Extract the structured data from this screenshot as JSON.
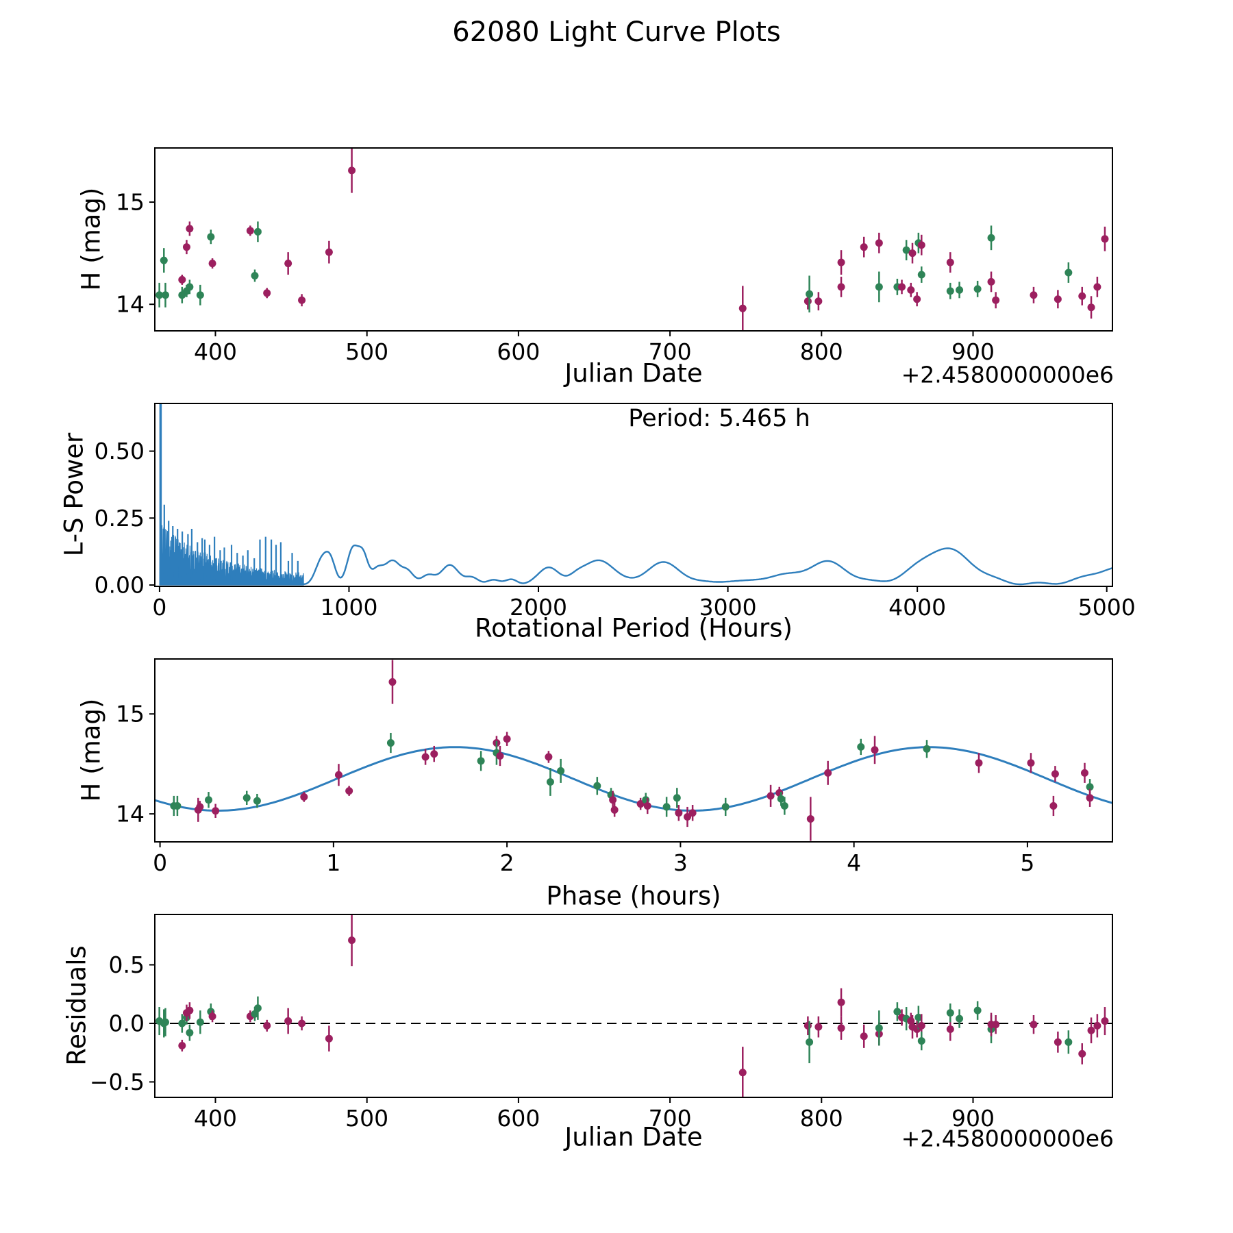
{
  "title": "62080 Light Curve Plots",
  "colors": {
    "green": "#2e8457",
    "purple": "#9c1f5f",
    "blue": "#2e7ebc",
    "axis": "#000000",
    "background": "#ffffff"
  },
  "chart_data": [
    {
      "id": "p1",
      "type": "scatter",
      "name": "raw-light-curve",
      "xlabel": "Julian Date",
      "ylabel": "H (mag)",
      "x_offset_label": "+2.4580000000e6",
      "xlim": [
        360,
        992
      ],
      "ylim": [
        13.74,
        15.53
      ],
      "y_inverted": true,
      "xticks": [
        400,
        500,
        600,
        700,
        800,
        900
      ],
      "yticks": [
        14,
        15
      ],
      "xtick_decimals": 0,
      "ytick_decimals": 0,
      "legend": "off",
      "grid": "off",
      "point_columns": [
        "jd_minus_2458000",
        "H_mag",
        "err_mag",
        "residual_mag",
        "series"
      ],
      "series_names": {
        "g": "observations-set-1",
        "p": "observations-set-2"
      },
      "points": [
        [
          363,
          14.09,
          0.12,
          0.02,
          "g"
        ],
        [
          366,
          14.43,
          0.12,
          0.0,
          "g"
        ],
        [
          367,
          14.09,
          0.12,
          0.01,
          "g"
        ],
        [
          378,
          14.24,
          0.05,
          -0.19,
          "p"
        ],
        [
          378,
          14.09,
          0.08,
          0.0,
          "g"
        ],
        [
          381,
          14.13,
          0.06,
          0.05,
          "g"
        ],
        [
          381,
          14.56,
          0.07,
          0.09,
          "p"
        ],
        [
          383,
          14.74,
          0.07,
          0.11,
          "p"
        ],
        [
          383,
          14.17,
          0.07,
          -0.08,
          "g"
        ],
        [
          390,
          14.09,
          0.1,
          0.01,
          "g"
        ],
        [
          397,
          14.66,
          0.07,
          0.1,
          "g"
        ],
        [
          398,
          14.4,
          0.05,
          0.06,
          "p"
        ],
        [
          423,
          14.72,
          0.05,
          0.06,
          "p"
        ],
        [
          426,
          14.28,
          0.06,
          0.08,
          "g"
        ],
        [
          428,
          14.71,
          0.1,
          0.13,
          "g"
        ],
        [
          434,
          14.11,
          0.05,
          -0.02,
          "p"
        ],
        [
          448,
          14.4,
          0.11,
          0.02,
          "p"
        ],
        [
          457,
          14.04,
          0.06,
          0.0,
          "p"
        ],
        [
          475,
          14.51,
          0.11,
          -0.13,
          "p"
        ],
        [
          490,
          15.31,
          0.22,
          0.71,
          "p"
        ],
        [
          748,
          13.96,
          0.22,
          -0.42,
          "p"
        ],
        [
          791,
          14.03,
          0.08,
          -0.02,
          "p"
        ],
        [
          792,
          14.1,
          0.18,
          -0.16,
          "g"
        ],
        [
          798,
          14.03,
          0.09,
          -0.03,
          "p"
        ],
        [
          813,
          14.17,
          0.1,
          -0.04,
          "p"
        ],
        [
          813,
          14.41,
          0.12,
          0.18,
          "p"
        ],
        [
          828,
          14.56,
          0.1,
          -0.11,
          "p"
        ],
        [
          838,
          14.6,
          0.1,
          -0.09,
          "p"
        ],
        [
          838,
          14.17,
          0.15,
          -0.04,
          "g"
        ],
        [
          850,
          14.17,
          0.08,
          0.1,
          "g"
        ],
        [
          853,
          14.17,
          0.07,
          0.05,
          "p"
        ],
        [
          856,
          14.53,
          0.1,
          0.04,
          "g"
        ],
        [
          859,
          14.14,
          0.07,
          0.02,
          "p"
        ],
        [
          860,
          14.5,
          0.1,
          -0.03,
          "p"
        ],
        [
          863,
          14.05,
          0.07,
          -0.05,
          "p"
        ],
        [
          864,
          14.6,
          0.1,
          0.05,
          "g"
        ],
        [
          866,
          14.58,
          0.1,
          -0.02,
          "p"
        ],
        [
          866,
          14.29,
          0.08,
          -0.15,
          "g"
        ],
        [
          885,
          14.41,
          0.1,
          -0.05,
          "p"
        ],
        [
          885,
          14.13,
          0.08,
          0.09,
          "g"
        ],
        [
          891,
          14.14,
          0.08,
          0.04,
          "g"
        ],
        [
          903,
          14.15,
          0.08,
          0.11,
          "g"
        ],
        [
          912,
          14.65,
          0.12,
          -0.05,
          "g"
        ],
        [
          912,
          14.22,
          0.1,
          -0.01,
          "p"
        ],
        [
          915,
          14.04,
          0.08,
          -0.01,
          "p"
        ],
        [
          940,
          14.09,
          0.08,
          -0.01,
          "p"
        ],
        [
          956,
          14.05,
          0.09,
          -0.16,
          "p"
        ],
        [
          963,
          14.31,
          0.1,
          -0.16,
          "g"
        ],
        [
          972,
          14.08,
          0.09,
          -0.26,
          "p"
        ],
        [
          978,
          13.97,
          0.11,
          -0.06,
          "p"
        ],
        [
          982,
          14.17,
          0.1,
          -0.02,
          "p"
        ],
        [
          987,
          14.64,
          0.12,
          0.02,
          "p"
        ]
      ]
    },
    {
      "id": "p2",
      "type": "line",
      "name": "lomb-scargle-periodogram",
      "xlabel": "Rotational Period (Hours)",
      "ylabel": "L-S Power",
      "annotation": "Period: 5.465 h",
      "best_period_hours": 5.465,
      "xlim": [
        -25,
        5030
      ],
      "ylim": [
        -0.005,
        0.678
      ],
      "xticks": [
        0,
        1000,
        2000,
        3000,
        4000,
        5000
      ],
      "yticks": [
        0.0,
        0.25,
        0.5
      ],
      "xtick_decimals": 0,
      "ytick_decimals": 2,
      "grid": "off",
      "main_peak": {
        "period_h": 5.465,
        "power": 0.68
      },
      "noise_region": {
        "from_h": 1,
        "to_h": 760,
        "envelope_amp": 0.205,
        "envelope_tau": 310,
        "envelope_base": 0.028,
        "seed": 1234,
        "step_h": 1.0
      },
      "spike_columns": [
        "period_h",
        "power"
      ],
      "spikes": [
        [
          25,
          0.3
        ],
        [
          48,
          0.24
        ],
        [
          70,
          0.22
        ],
        [
          95,
          0.21
        ],
        [
          120,
          0.2
        ],
        [
          150,
          0.19
        ],
        [
          170,
          0.21
        ],
        [
          200,
          0.16
        ],
        [
          225,
          0.175
        ],
        [
          239,
          0.17
        ],
        [
          264,
          0.15
        ],
        [
          290,
          0.18
        ],
        [
          320,
          0.13
        ],
        [
          342,
          0.14
        ],
        [
          380,
          0.15
        ],
        [
          410,
          0.12
        ],
        [
          440,
          0.11
        ],
        [
          466,
          0.13
        ],
        [
          500,
          0.1
        ],
        [
          530,
          0.17
        ],
        [
          560,
          0.18
        ],
        [
          590,
          0.17
        ],
        [
          615,
          0.15
        ],
        [
          640,
          0.16
        ],
        [
          680,
          0.09
        ],
        [
          700,
          0.12
        ],
        [
          730,
          0.09
        ]
      ],
      "bump_columns": [
        "period_h",
        "power",
        "sigma_h"
      ],
      "bumps": [
        [
          860,
          0.095,
          35
        ],
        [
          905,
          0.06,
          25
        ],
        [
          1020,
          0.135,
          30
        ],
        [
          1075,
          0.1,
          25
        ],
        [
          1150,
          0.05,
          30
        ],
        [
          1230,
          0.09,
          40
        ],
        [
          1310,
          0.04,
          30
        ],
        [
          1420,
          0.035,
          35
        ],
        [
          1530,
          0.068,
          45
        ],
        [
          1650,
          0.028,
          35
        ],
        [
          1760,
          0.012,
          30
        ],
        [
          1860,
          0.02,
          30
        ],
        [
          2060,
          0.062,
          55
        ],
        [
          2200,
          0.02,
          40
        ],
        [
          2320,
          0.092,
          75
        ],
        [
          2660,
          0.078,
          95
        ],
        [
          3000,
          0.012,
          60
        ],
        [
          3250,
          0.028,
          90
        ],
        [
          3520,
          0.082,
          110
        ],
        [
          4145,
          0.132,
          140
        ],
        [
          5060,
          0.06,
          140
        ]
      ]
    },
    {
      "id": "p3",
      "type": "scatter",
      "name": "phased-light-curve",
      "xlabel": "Phase (hours)",
      "ylabel": "H (mag)",
      "xlim": [
        -0.03,
        5.49
      ],
      "ylim": [
        13.72,
        15.55
      ],
      "y_inverted": true,
      "xticks": [
        0,
        1,
        2,
        3,
        4,
        5
      ],
      "yticks": [
        14,
        15
      ],
      "xtick_decimals": 0,
      "ytick_decimals": 0,
      "grid": "off",
      "fit": {
        "mean": 14.35,
        "amplitude": 0.318,
        "period_h": 2.7325,
        "phase_of_min_h": 0.334
      },
      "point_columns": [
        "phase_hours",
        "H_mag",
        "err_mag",
        "series"
      ],
      "points": [
        [
          0.08,
          14.08,
          0.1,
          "g"
        ],
        [
          0.1,
          14.08,
          0.1,
          "g"
        ],
        [
          0.22,
          14.04,
          0.12,
          "p"
        ],
        [
          0.23,
          14.07,
          0.06,
          "p"
        ],
        [
          0.28,
          14.14,
          0.08,
          "g"
        ],
        [
          0.32,
          14.03,
          0.07,
          "p"
        ],
        [
          0.5,
          14.16,
          0.07,
          "g"
        ],
        [
          0.56,
          14.13,
          0.07,
          "g"
        ],
        [
          0.83,
          14.17,
          0.05,
          "p"
        ],
        [
          1.03,
          14.39,
          0.11,
          "p"
        ],
        [
          1.09,
          14.23,
          0.05,
          "p"
        ],
        [
          1.33,
          14.71,
          0.1,
          "g"
        ],
        [
          1.34,
          15.32,
          0.22,
          "p"
        ],
        [
          1.53,
          14.57,
          0.08,
          "p"
        ],
        [
          1.58,
          14.6,
          0.08,
          "p"
        ],
        [
          1.85,
          14.53,
          0.1,
          "g"
        ],
        [
          1.94,
          14.71,
          0.07,
          "p"
        ],
        [
          1.94,
          14.61,
          0.12,
          "g"
        ],
        [
          1.96,
          14.58,
          0.1,
          "p"
        ],
        [
          2.0,
          14.75,
          0.07,
          "p"
        ],
        [
          2.24,
          14.57,
          0.06,
          "p"
        ],
        [
          2.25,
          14.32,
          0.14,
          "g"
        ],
        [
          2.31,
          14.43,
          0.12,
          "g"
        ],
        [
          2.52,
          14.28,
          0.09,
          "g"
        ],
        [
          2.6,
          14.19,
          0.07,
          "g"
        ],
        [
          2.61,
          14.14,
          0.09,
          "p"
        ],
        [
          2.62,
          14.04,
          0.07,
          "p"
        ],
        [
          2.77,
          14.1,
          0.06,
          "p"
        ],
        [
          2.8,
          14.14,
          0.07,
          "g"
        ],
        [
          2.81,
          14.08,
          0.08,
          "p"
        ],
        [
          2.92,
          14.07,
          0.1,
          "g"
        ],
        [
          2.98,
          14.16,
          0.1,
          "g"
        ],
        [
          2.99,
          14.01,
          0.08,
          "p"
        ],
        [
          3.04,
          13.97,
          0.1,
          "p"
        ],
        [
          3.07,
          14.01,
          0.08,
          "p"
        ],
        [
          3.26,
          14.07,
          0.09,
          "g"
        ],
        [
          3.52,
          14.18,
          0.11,
          "p"
        ],
        [
          3.57,
          14.21,
          0.06,
          "p"
        ],
        [
          3.58,
          14.15,
          0.07,
          "g"
        ],
        [
          3.6,
          14.08,
          0.09,
          "g"
        ],
        [
          3.75,
          13.95,
          0.22,
          "p"
        ],
        [
          3.85,
          14.41,
          0.12,
          "p"
        ],
        [
          4.04,
          14.67,
          0.08,
          "g"
        ],
        [
          4.12,
          14.64,
          0.14,
          "p"
        ],
        [
          4.42,
          14.65,
          0.09,
          "g"
        ],
        [
          4.72,
          14.51,
          0.1,
          "p"
        ],
        [
          5.02,
          14.51,
          0.1,
          "p"
        ],
        [
          5.15,
          14.08,
          0.1,
          "p"
        ],
        [
          5.16,
          14.4,
          0.08,
          "p"
        ],
        [
          5.33,
          14.41,
          0.1,
          "p"
        ],
        [
          5.36,
          14.27,
          0.08,
          "g"
        ],
        [
          5.36,
          14.16,
          0.09,
          "p"
        ]
      ]
    },
    {
      "id": "p4",
      "type": "scatter",
      "name": "residuals",
      "xlabel": "Julian Date",
      "ylabel": "Residuals",
      "x_offset_label": "+2.4580000000e6",
      "xlim": [
        360,
        992
      ],
      "ylim": [
        -0.632,
        0.93
      ],
      "y_inverted": false,
      "xticks": [
        400,
        500,
        600,
        700,
        800,
        900
      ],
      "yticks": [
        -0.5,
        0.0,
        0.5
      ],
      "xtick_decimals": 0,
      "ytick_decimals": 1,
      "grid": "off",
      "zero_line": "dashed",
      "points_source": "chart 0 (columns jd_minus_2458000, residual_mag, err_mag, series)"
    }
  ]
}
